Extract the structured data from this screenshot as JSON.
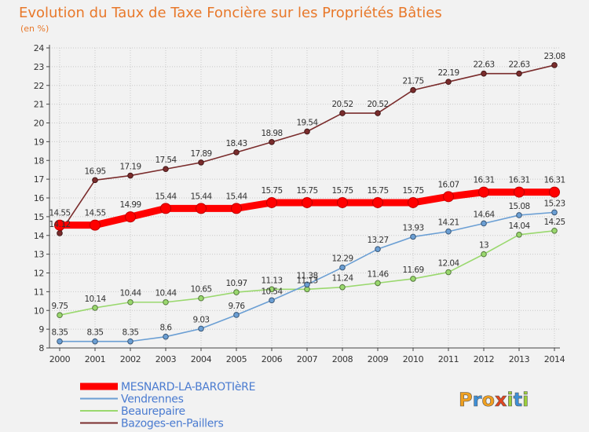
{
  "chart_data": {
    "type": "line",
    "title": "Evolution du Taux de Taxe Foncière sur les Propriétés Bâties",
    "subtitle": "(en %)",
    "xlabel": "",
    "ylabel": "",
    "ylim": [
      8,
      24
    ],
    "yticks": [
      8,
      9,
      10,
      11,
      12,
      13,
      14,
      15,
      16,
      17,
      18,
      19,
      20,
      21,
      22,
      23,
      24
    ],
    "grid": true,
    "legend_position": "bottom-left",
    "x": [
      "2000",
      "2001",
      "2002",
      "2003",
      "2004",
      "2005",
      "2006",
      "2007",
      "2008",
      "2009",
      "2010",
      "2011",
      "2012",
      "2013",
      "2014"
    ],
    "series": [
      {
        "name": "MESNARD-LA-BAROTIèRE",
        "color": "#ff0000",
        "values": [
          14.55,
          14.55,
          14.99,
          15.44,
          15.44,
          15.44,
          15.75,
          15.75,
          15.75,
          15.75,
          15.75,
          16.07,
          16.31,
          16.31,
          16.31
        ],
        "labels": [
          "14.55",
          "14.55",
          "14.99",
          "15.44",
          "15.44",
          "15.44",
          "15.75",
          "15.75",
          "15.75",
          "15.75",
          "15.75",
          "16.07",
          "16.31",
          "16.31",
          "16.31"
        ]
      },
      {
        "name": "Vendrennes",
        "color": "#6b9fd4",
        "values": [
          8.35,
          8.35,
          8.35,
          8.6,
          9.03,
          9.76,
          10.54,
          11.38,
          12.29,
          13.27,
          13.93,
          14.21,
          14.64,
          15.08,
          15.23
        ],
        "labels": [
          "8.35",
          "8.35",
          "8.35",
          "8.6",
          "9.03",
          "9.76",
          "10.54",
          "11.38",
          "12.29",
          "13.27",
          "13.93",
          "14.21",
          "14.64",
          "15.08",
          "15.23"
        ]
      },
      {
        "name": "Beaurepaire",
        "color": "#9ad86e",
        "values": [
          9.75,
          10.14,
          10.44,
          10.44,
          10.65,
          10.97,
          11.13,
          11.13,
          11.24,
          11.46,
          11.69,
          12.04,
          13,
          14.04,
          14.25
        ],
        "labels": [
          "9.75",
          "10.14",
          "10.44",
          "10.44",
          "10.65",
          "10.97",
          "11.13",
          "11.13",
          "11.24",
          "11.46",
          "11.69",
          "12.04",
          "13",
          "14.04",
          "14.25"
        ]
      },
      {
        "name": "Bazoges-en-Paillers",
        "color": "#7a2c2c",
        "values": [
          14.12,
          16.95,
          17.19,
          17.54,
          17.89,
          18.43,
          18.98,
          19.54,
          20.52,
          20.52,
          21.75,
          22.19,
          22.63,
          22.63,
          23.08
        ],
        "labels": [
          "14.12",
          "16.95",
          "17.19",
          "17.54",
          "17.89",
          "18.43",
          "18.98",
          "19.54",
          "20.52",
          "20.52",
          "21.75",
          "22.19",
          "22.63",
          "22.63",
          "23.08"
        ]
      }
    ]
  },
  "logo": {
    "text": "Proxiti"
  }
}
